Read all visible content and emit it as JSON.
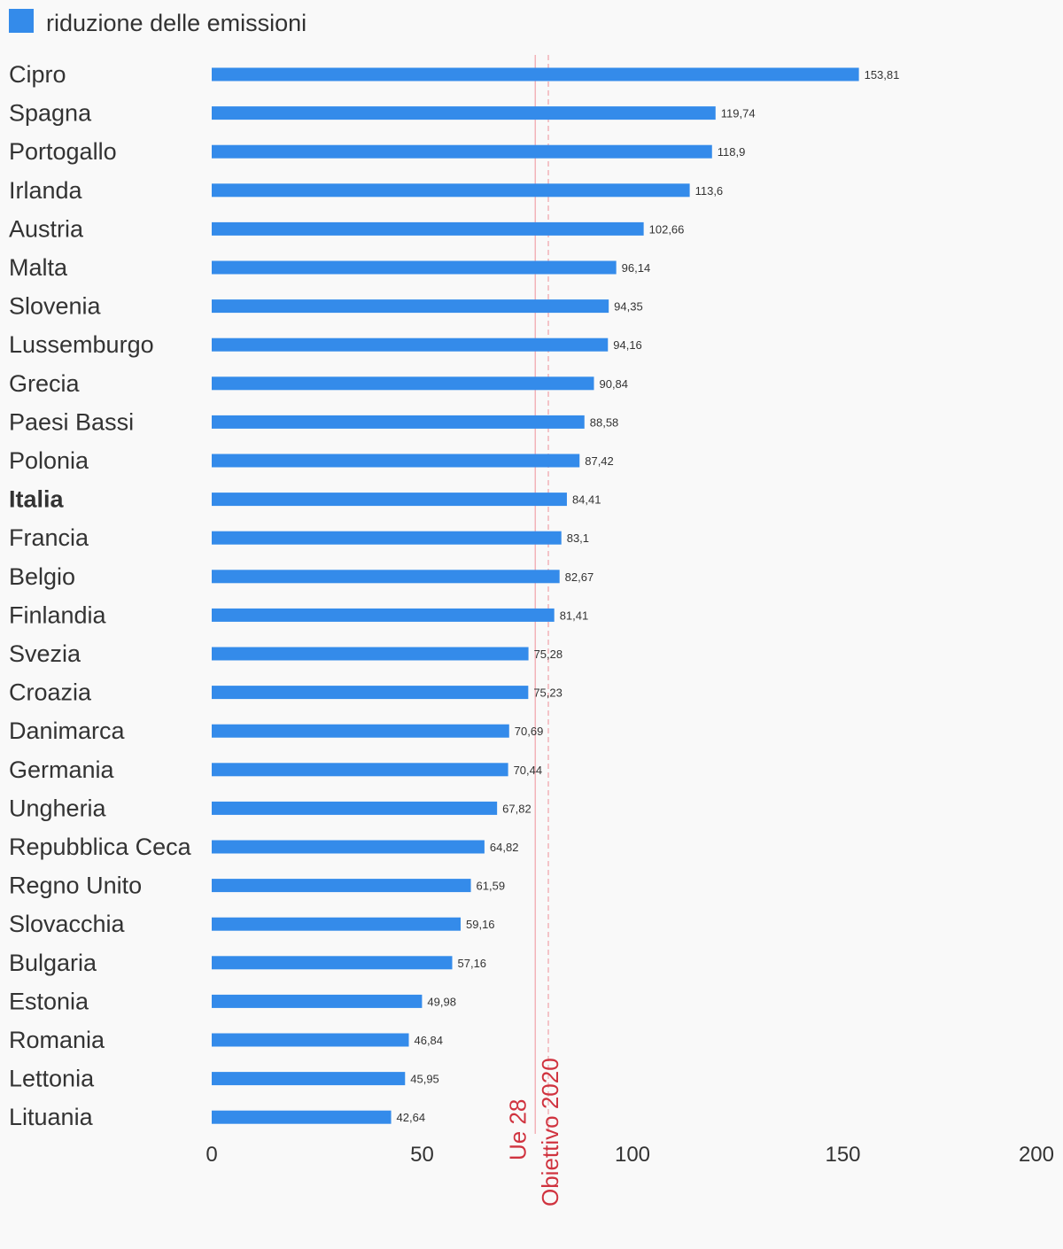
{
  "chart_data": {
    "type": "bar",
    "orientation": "horizontal",
    "legend": {
      "label": "riduzione delle emissioni",
      "position": "top-left"
    },
    "colors": {
      "bar": "#348bea",
      "reference": "#d0333f",
      "text": "#333333",
      "background": "#f9f9f9"
    },
    "series": [
      {
        "name": "riduzione delle emissioni",
        "categories": [
          "Cipro",
          "Spagna",
          "Portogallo",
          "Irlanda",
          "Austria",
          "Malta",
          "Slovenia",
          "Lussemburgo",
          "Grecia",
          "Paesi Bassi",
          "Polonia",
          "Italia",
          "Francia",
          "Belgio",
          "Finlandia",
          "Svezia",
          "Croazia",
          "Danimarca",
          "Germania",
          "Ungheria",
          "Repubblica Ceca",
          "Regno Unito",
          "Slovacchia",
          "Bulgaria",
          "Estonia",
          "Romania",
          "Lettonia",
          "Lituania"
        ],
        "values": [
          153.81,
          119.74,
          118.9,
          113.6,
          102.66,
          96.14,
          94.35,
          94.16,
          90.84,
          88.58,
          87.42,
          84.41,
          83.1,
          82.67,
          81.41,
          75.28,
          75.23,
          70.69,
          70.44,
          67.82,
          64.82,
          61.59,
          59.16,
          57.16,
          49.98,
          46.84,
          45.95,
          42.64
        ],
        "value_labels": [
          "153,81",
          "119,74",
          "118,9",
          "113,6",
          "102,66",
          "96,14",
          "94,35",
          "94,16",
          "90,84",
          "88,58",
          "87,42",
          "84,41",
          "83,1",
          "82,67",
          "81,41",
          "75,28",
          "75,23",
          "70,69",
          "70,44",
          "67,82",
          "64,82",
          "61,59",
          "59,16",
          "57,16",
          "49,98",
          "46,84",
          "45,95",
          "42,64"
        ]
      }
    ],
    "highlighted_category": "Italia",
    "x_axis": {
      "min": 0,
      "max": 200,
      "ticks": [
        0,
        50,
        100,
        150,
        200
      ],
      "tick_labels": [
        "0",
        "50",
        "100",
        "150",
        "200"
      ]
    },
    "grid": false,
    "reference_lines": [
      {
        "label": "Ue 28",
        "value": 76.9,
        "style": "solid"
      },
      {
        "label": "Obiettivo 2020",
        "value": 80,
        "style": "dashed"
      }
    ]
  }
}
